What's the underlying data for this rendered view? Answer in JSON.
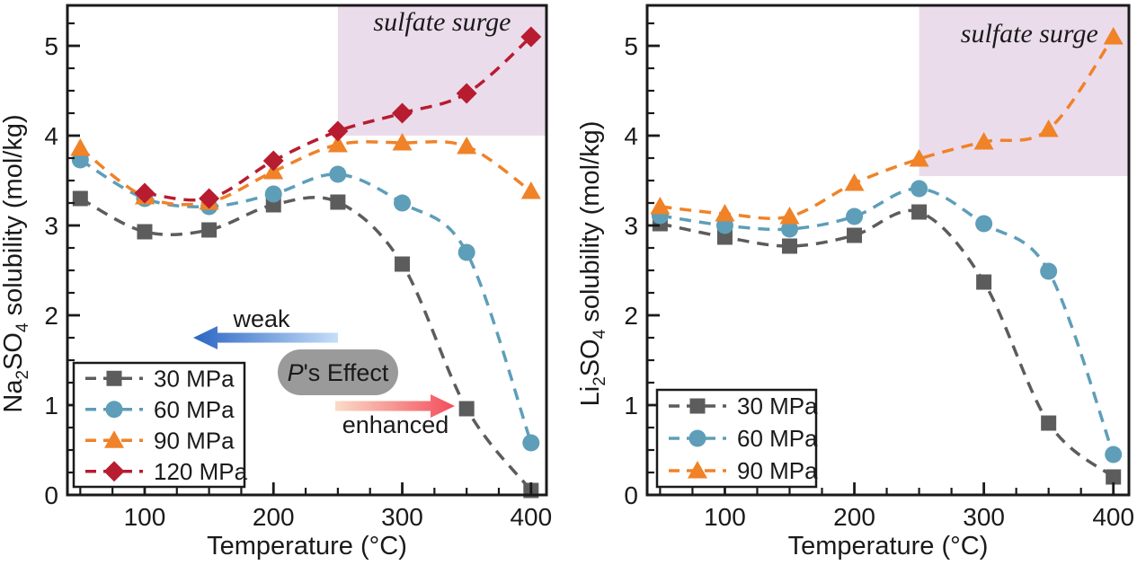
{
  "page": {
    "background": "#ffffff",
    "axis_color": "#1a1a1a"
  },
  "chart_data": [
    {
      "type": "line",
      "panel": "left",
      "ylabel_parts": [
        {
          "t": "Na"
        },
        {
          "t": "2",
          "sub": true
        },
        {
          "t": "SO"
        },
        {
          "t": "4",
          "sub": true
        },
        {
          "t": " solubility (mol/kg)"
        }
      ],
      "xlabel": "Temperature (°C)",
      "x": [
        50,
        100,
        150,
        200,
        250,
        300,
        350,
        400
      ],
      "xlim": [
        40,
        412
      ],
      "ylim": [
        0,
        5.45
      ],
      "x_major_ticks": [
        100,
        200,
        300,
        400
      ],
      "x_minor_step": 25,
      "y_major_ticks": [
        0,
        1,
        2,
        3,
        4,
        5
      ],
      "y_minor_step": 0.25,
      "grid": false,
      "legend_position": "lower left",
      "series": [
        {
          "name": "30 MPa",
          "marker": "square",
          "color": "#5C5C5C",
          "values": [
            3.3,
            2.93,
            2.95,
            3.23,
            3.26,
            2.57,
            0.96,
            0.05
          ]
        },
        {
          "name": "60 MPa",
          "marker": "circle",
          "color": "#5E9EB9",
          "values": [
            3.73,
            3.3,
            3.21,
            3.35,
            3.57,
            3.25,
            2.7,
            0.58
          ]
        },
        {
          "name": "90 MPa",
          "marker": "triangle",
          "color": "#F08228",
          "values": [
            3.86,
            3.32,
            3.26,
            3.6,
            3.9,
            3.92,
            3.88,
            3.38
          ]
        },
        {
          "name": "120 MPa",
          "marker": "diamond",
          "color": "#B71C30",
          "values": [
            null,
            3.36,
            3.3,
            3.72,
            4.05,
            4.25,
            4.47,
            5.1
          ]
        }
      ],
      "surge_region": {
        "label": "sulfate surge",
        "x_start": 250,
        "y_bottom": 4.0,
        "fill": "#EBDCEC",
        "label_color": "#191932"
      },
      "annotations": {
        "weak_label": "weak",
        "enhanced_label": "enhanced",
        "pill_parts": [
          {
            "t": "P",
            "italic": true
          },
          {
            "t": "'s Effect"
          }
        ],
        "pill_fill": "#9A9A9A",
        "pill_text_color": "#ffffff",
        "weak_arrow_colors": [
          "#2B66C4",
          "#C6DEF8"
        ],
        "enhanced_arrow_colors": [
          "#F9DCC6",
          "#F44D5C"
        ]
      }
    },
    {
      "type": "line",
      "panel": "right",
      "ylabel_parts": [
        {
          "t": "Li"
        },
        {
          "t": "2",
          "sub": true
        },
        {
          "t": "SO"
        },
        {
          "t": "4",
          "sub": true
        },
        {
          "t": " solubility (mol/kg)"
        }
      ],
      "xlabel": "Temperature (°C)",
      "x": [
        50,
        100,
        150,
        200,
        250,
        300,
        350,
        400
      ],
      "xlim": [
        40,
        412
      ],
      "ylim": [
        0,
        5.45
      ],
      "x_major_ticks": [
        100,
        200,
        300,
        400
      ],
      "x_minor_step": 25,
      "y_major_ticks": [
        0,
        1,
        2,
        3,
        4,
        5
      ],
      "y_minor_step": 0.25,
      "grid": false,
      "legend_position": "lower left",
      "series": [
        {
          "name": "30 MPa",
          "marker": "square",
          "color": "#5C5C5C",
          "values": [
            3.02,
            2.87,
            2.77,
            2.89,
            3.15,
            2.37,
            0.8,
            0.2
          ]
        },
        {
          "name": "60 MPa",
          "marker": "circle",
          "color": "#5E9EB9",
          "values": [
            3.11,
            3.0,
            2.96,
            3.1,
            3.41,
            3.02,
            2.49,
            0.45
          ]
        },
        {
          "name": "90 MPa",
          "marker": "triangle",
          "color": "#F08228",
          "values": [
            3.21,
            3.13,
            3.1,
            3.47,
            3.74,
            3.93,
            4.07,
            5.1
          ]
        }
      ],
      "surge_region": {
        "label": "sulfate surge",
        "x_start": 250,
        "y_bottom": 3.55,
        "fill": "#EBDCEC",
        "label_color": "#191932"
      },
      "annotations": null
    }
  ]
}
